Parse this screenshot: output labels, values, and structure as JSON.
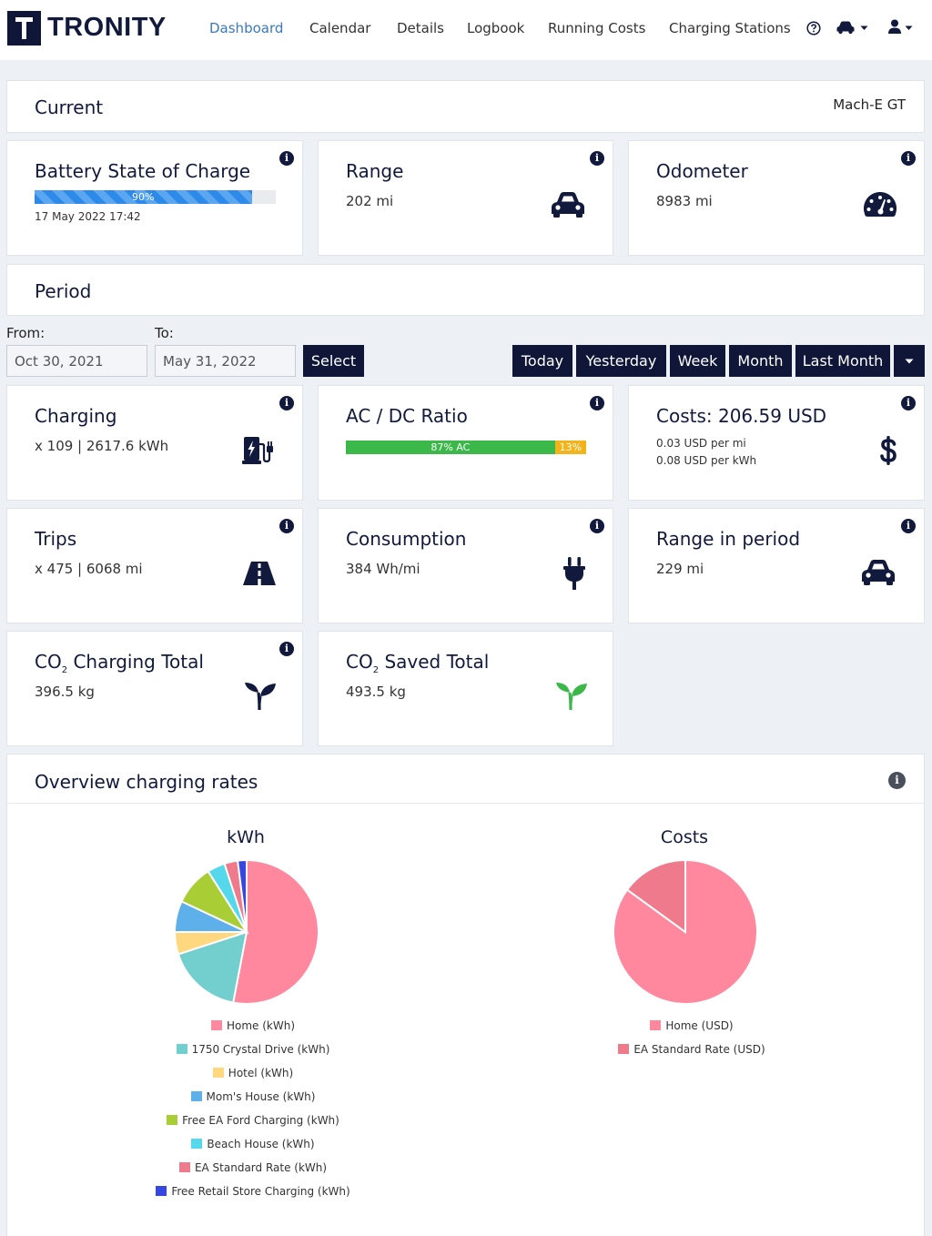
{
  "app": {
    "brand": "TRONITY"
  },
  "nav": {
    "items": [
      {
        "label": "Dashboard",
        "active": true
      },
      {
        "label": "Calendar"
      },
      {
        "label": "Details"
      },
      {
        "label": "Logbook"
      },
      {
        "label": "Running Costs"
      },
      {
        "label": "Charging Stations"
      }
    ],
    "help_icon": "question-circle-icon",
    "car_menu_icon": "car-icon",
    "user_menu_icon": "user-icon"
  },
  "current": {
    "title": "Current",
    "vehicle": "Mach-E GT"
  },
  "battery": {
    "title": "Battery State of Charge",
    "percent": 90,
    "percent_label": "90%",
    "timestamp": "17 May 2022 17:42"
  },
  "range": {
    "title": "Range",
    "value": "202 mi"
  },
  "odometer": {
    "title": "Odometer",
    "value": "8983 mi"
  },
  "period": {
    "title": "Period",
    "from_label": "From:",
    "to_label": "To:",
    "from_value": "Oct 30, 2021",
    "to_value": "May 31, 2022",
    "select_label": "Select",
    "quick": [
      "Today",
      "Yesterday",
      "Week",
      "Month",
      "Last Month"
    ]
  },
  "charging": {
    "title": "Charging",
    "value": "x 109 | 2617.6 kWh"
  },
  "acdc": {
    "title": "AC / DC Ratio",
    "ac_percent": 87,
    "dc_percent": 13,
    "ac_label": "87% AC",
    "dc_label": "13%",
    "ac_color": "#3cb84a",
    "dc_color": "#f2b31b"
  },
  "costs": {
    "title": "Costs: 206.59 USD",
    "per_mi": "0.03 USD per mi",
    "per_kwh": "0.08 USD per kWh"
  },
  "trips": {
    "title": "Trips",
    "value": "x 475 | 6068 mi"
  },
  "consumption": {
    "title": "Consumption",
    "value": "384 Wh/mi"
  },
  "range_period": {
    "title": "Range in period",
    "value": "229 mi"
  },
  "co2_charging": {
    "title_main": "CO",
    "title_sub": "2",
    "title_rest": " Charging Total",
    "value": "396.5 kg"
  },
  "co2_saved": {
    "title_main": "CO",
    "title_sub": "2",
    "title_rest": " Saved Total",
    "value": "493.5 kg",
    "icon_color": "#3cb84a"
  },
  "overview": {
    "title": "Overview charging rates"
  },
  "chart_data": [
    {
      "type": "pie",
      "title": "kWh",
      "labels": [
        "Home (kWh)",
        "1750 Crystal Drive (kWh)",
        "Hotel (kWh)",
        "Mom's House (kWh)",
        "Free EA Ford Charging (kWh)",
        "Beach House (kWh)",
        "EA Standard Rate (kWh)",
        "Free Retail Store Charging (kWh)"
      ],
      "values": [
        53,
        17,
        5,
        7,
        9,
        4,
        3,
        2
      ],
      "colors": [
        "#ff879e",
        "#72cfcd",
        "#ffd77f",
        "#5eb0ea",
        "#a8cd35",
        "#55d8ec",
        "#ee7a8c",
        "#3547e0"
      ]
    },
    {
      "type": "pie",
      "title": "Costs",
      "labels": [
        "Home (USD)",
        "EA Standard Rate (USD)"
      ],
      "values": [
        85,
        15
      ],
      "colors": [
        "#ff879e",
        "#ee7a8c"
      ]
    }
  ]
}
